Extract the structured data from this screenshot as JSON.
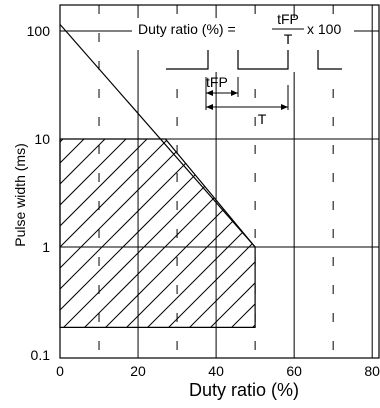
{
  "chart_data": {
    "type": "line",
    "xlabel": "Duty ratio (%)",
    "ylabel": "Pulse width (ms)",
    "x_scale": "linear",
    "y_scale": "log",
    "xlim": [
      0,
      82
    ],
    "ylim": [
      0.1,
      160
    ],
    "x_ticks": [
      0,
      20,
      40,
      60,
      80
    ],
    "x_tick_labels": [
      "0",
      "20",
      "40",
      "60",
      "80"
    ],
    "x_dashed_gridlines": [
      10,
      30,
      50,
      70
    ],
    "y_ticks": [
      0.1,
      1,
      10,
      100
    ],
    "y_tick_labels": [
      "0.1",
      "1",
      "10",
      "100"
    ],
    "grid": true,
    "series": [
      {
        "x": [
          0,
          5,
          10,
          15,
          20,
          25,
          30,
          35,
          40,
          45,
          50
        ],
        "y": [
          100,
          52,
          28,
          15.5,
          8.5,
          4.7,
          2.7,
          1.85,
          1.45,
          1.2,
          1
        ]
      }
    ],
    "safe_region": {
      "x": [
        0,
        50,
        50,
        0
      ],
      "y": [
        10,
        10,
        0.18,
        0.18
      ],
      "boundary": {
        "x": [
          0,
          27,
          50
        ],
        "y": [
          10,
          10,
          1
        ]
      }
    },
    "annotations": {
      "formula_lhs": "Duty ratio (%) =",
      "formula_numerator": "tFP",
      "formula_denominator": "T",
      "formula_multiplier": "x 100",
      "tfp_label": "tFP",
      "period_label": "T"
    }
  }
}
